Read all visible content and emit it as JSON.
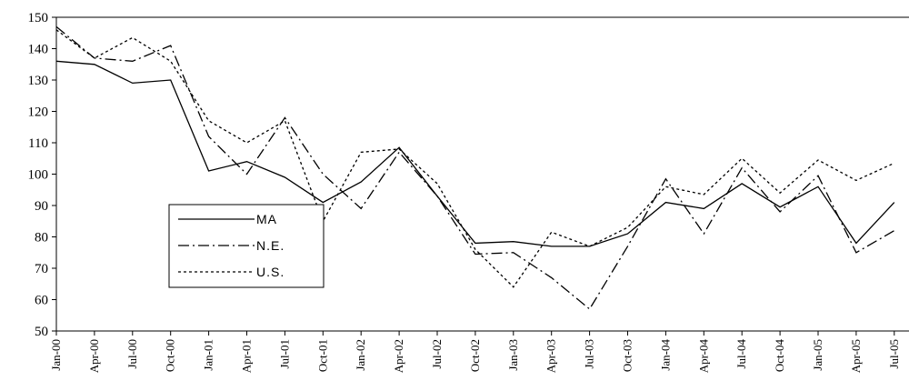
{
  "chart_data": {
    "type": "line",
    "title": "",
    "xlabel": "",
    "ylabel": "",
    "ylim": [
      50,
      150
    ],
    "yticks": [
      50,
      60,
      70,
      80,
      90,
      100,
      110,
      120,
      130,
      140,
      150
    ],
    "grid": false,
    "legend_position": "left-center",
    "x": [
      "Jan-00",
      "Apr-00",
      "Jul-00",
      "Oct-00",
      "Jan-01",
      "Apr-01",
      "Jul-01",
      "Oct-01",
      "Jan-02",
      "Apr-02",
      "Jul-02",
      "Oct-02",
      "Jan-03",
      "Apr-03",
      "Jul-03",
      "Oct-03",
      "Jan-04",
      "Apr-04",
      "Jul-04",
      "Oct-04",
      "Jan-05",
      "Apr-05",
      "Jul-05"
    ],
    "series": [
      {
        "name": "MA",
        "style": "solid",
        "values": [
          136,
          135,
          129,
          130,
          101,
          104,
          99,
          91,
          97.5,
          108.5,
          93,
          78,
          78.5,
          77,
          77,
          81,
          91,
          89,
          97,
          89.5,
          96,
          78,
          91
        ]
      },
      {
        "name": "N.E.",
        "style": "dash-dot",
        "values": [
          147,
          137,
          136,
          141,
          112,
          100,
          118,
          100,
          89,
          107,
          93,
          74.5,
          75,
          67,
          57,
          77,
          98.5,
          81,
          102,
          88,
          99.5,
          75,
          82
        ]
      },
      {
        "name": "U.S.",
        "style": "dotted",
        "values": [
          146,
          137,
          143.5,
          136,
          117,
          110,
          117,
          85,
          107,
          108,
          97,
          76,
          64,
          81.5,
          77,
          83,
          96,
          93.5,
          105,
          94,
          104.5,
          98,
          103.5
        ]
      }
    ]
  }
}
